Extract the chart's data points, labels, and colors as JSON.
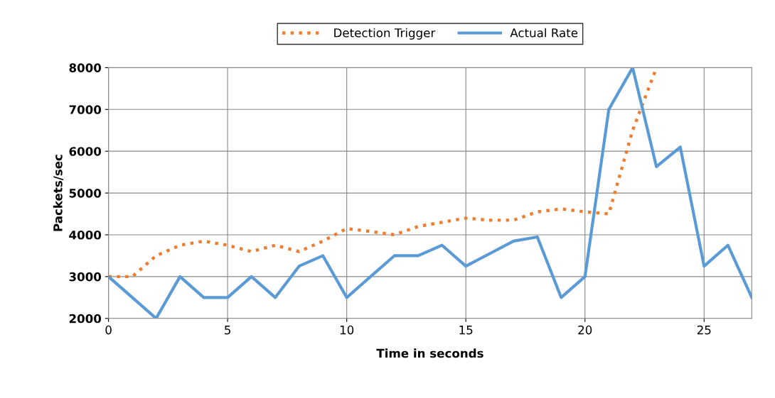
{
  "chart_data": {
    "type": "line",
    "xlabel": "Time in seconds",
    "ylabel": "Packets/sec",
    "x": [
      0,
      1,
      2,
      3,
      4,
      5,
      6,
      7,
      8,
      9,
      10,
      11,
      12,
      13,
      14,
      15,
      16,
      17,
      18,
      19,
      20,
      21,
      22,
      23,
      24,
      25,
      26,
      27
    ],
    "series": [
      {
        "name": "Detection Trigger",
        "color": "#ed7d31",
        "line_style": "dotted",
        "x": [
          0,
          1,
          2,
          3,
          4,
          5,
          6,
          7,
          8,
          9,
          10,
          11,
          12,
          13,
          14,
          15,
          16,
          17,
          18,
          19,
          20,
          21,
          22,
          23
        ],
        "values": [
          3000,
          3000,
          3500,
          3750,
          3850,
          3750,
          3600,
          3750,
          3600,
          3850,
          4150,
          4080,
          4000,
          4200,
          4300,
          4400,
          4350,
          4350,
          4550,
          4620,
          4550,
          4500,
          6500,
          8000
        ]
      },
      {
        "name": "Actual Rate",
        "color": "#5b9bd5",
        "line_style": "solid",
        "values": [
          3000,
          2500,
          2000,
          3000,
          2500,
          2500,
          3000,
          2500,
          3250,
          3500,
          2500,
          3000,
          3500,
          3500,
          3750,
          3250,
          3550,
          3850,
          3950,
          2500,
          3000,
          7000,
          8000,
          5630,
          6100,
          3250,
          3750,
          2500
        ]
      }
    ],
    "xlim": [
      0,
      27
    ],
    "xticks": [
      0,
      5,
      10,
      15,
      20,
      25
    ],
    "ylim": [
      2000,
      8000
    ],
    "yticks": [
      2000,
      3000,
      4000,
      5000,
      6000,
      7000,
      8000
    ],
    "grid": true,
    "legend": "top",
    "marker": "none"
  }
}
